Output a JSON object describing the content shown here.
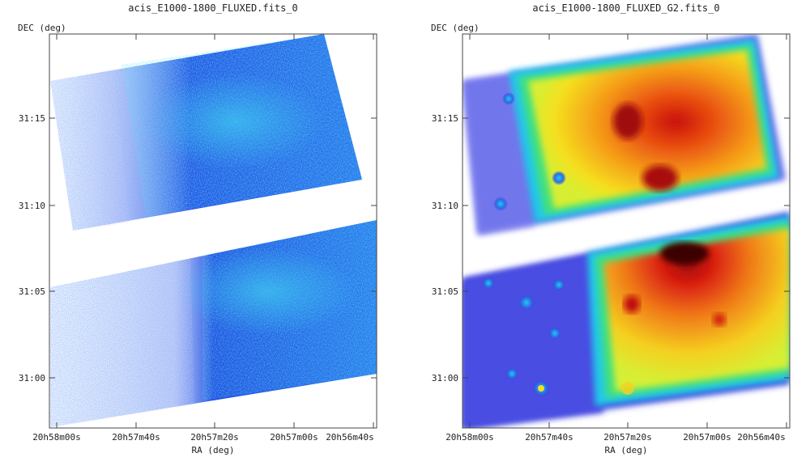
{
  "panels": [
    {
      "title": "acis_E1000-1800_FLUXED.fits_0",
      "ylabel": "DEC (deg)",
      "xlabel": "RA (deg)",
      "yticks": [
        "31:15",
        "31:10",
        "31:05",
        "31:00"
      ],
      "xticks": [
        "20h58m00s",
        "20h57m40s",
        "20h57m20s",
        "20h57m00s",
        "20h56m40s"
      ],
      "colormap": "blue-cyan counts map"
    },
    {
      "title": "acis_E1000-1800_FLUXED_G2.fits_0",
      "ylabel": "DEC (deg)",
      "xlabel": "RA (deg)",
      "yticks": [
        "31:15",
        "31:10",
        "31:05",
        "31:00"
      ],
      "xticks": [
        "20h58m00s",
        "20h57m40s",
        "20h57m20s",
        "20h57m00s",
        "20h56m40s"
      ],
      "colormap": "rainbow smoothed map"
    }
  ]
}
